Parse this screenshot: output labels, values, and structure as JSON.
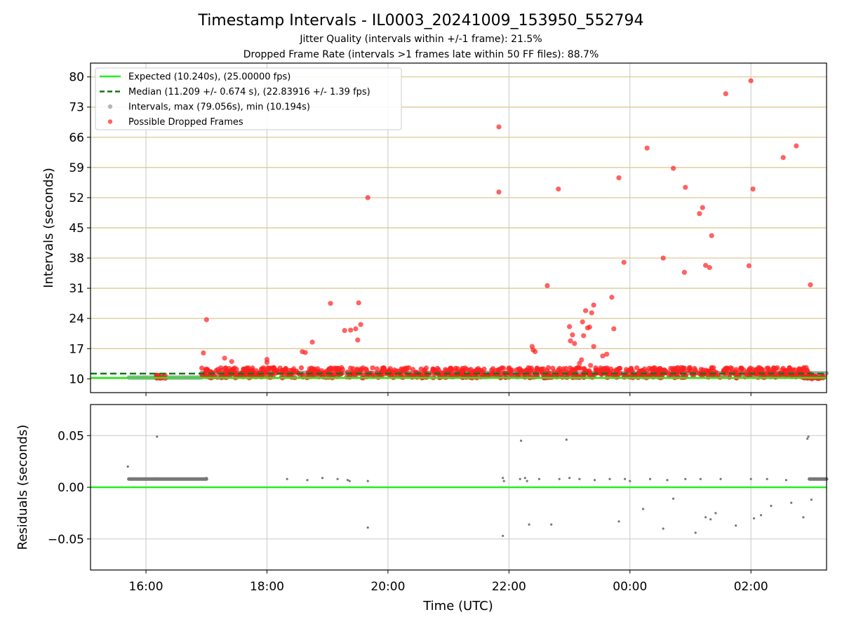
{
  "title": "Timestamp Intervals - IL0003_20241009_153950_552794",
  "subtitle1": "Jitter Quality (intervals within +/-1 frame): 21.5%",
  "subtitle2": "Dropped Frame Rate (intervals >1 frames late within 50 FF files): 88.7%",
  "colors": {
    "expected": "#22ee22",
    "median": "#117711",
    "intervals": "#999999",
    "dropped": "#ff2020",
    "hgrid_top": "#d8c48a",
    "grid": "#c8c8c8",
    "residuals": "#777777"
  },
  "chart_data": [
    {
      "type": "scatter",
      "xlabel": "",
      "ylabel": "Intervals (seconds)",
      "xlim": [
        "15:05",
        "03:15"
      ],
      "ylim": [
        6.8,
        83.2
      ],
      "yticks": [
        10,
        17,
        24,
        31,
        38,
        45,
        52,
        59,
        66,
        73,
        80
      ],
      "grid": true,
      "legend_position": "top-left",
      "legend": [
        "Expected (10.240s), (25.00000 fps)",
        "Median (11.209 +/- 0.674 s), (22.83916 +/- 1.39 fps)",
        "Intervals, max (79.056s), min (10.194s)",
        "Possible Dropped Frames"
      ],
      "expected_interval": 10.24,
      "median_interval": 11.209,
      "bands": [
        {
          "name": "Intervals",
          "x_start": "15:43",
          "x_end": "16:55",
          "y": 10.3
        },
        {
          "name": "Intervals",
          "x_start": "16:55",
          "x_end": "23:00",
          "y": 11.4
        },
        {
          "name": "Intervals",
          "x_start": "23:00",
          "x_end": "03:15",
          "y": 11.3
        }
      ],
      "dropped_frames": [
        {
          "x": "16:57",
          "y": 16.0
        },
        {
          "x": "17:00",
          "y": 23.7
        },
        {
          "x": "17:18",
          "y": 14.8
        },
        {
          "x": "17:25",
          "y": 14.0
        },
        {
          "x": "18:00",
          "y": 13.8
        },
        {
          "x": "18:00",
          "y": 14.5
        },
        {
          "x": "18:35",
          "y": 16.3
        },
        {
          "x": "18:38",
          "y": 16.1
        },
        {
          "x": "18:45",
          "y": 18.5
        },
        {
          "x": "19:03",
          "y": 27.5
        },
        {
          "x": "19:17",
          "y": 21.2
        },
        {
          "x": "19:23",
          "y": 21.3
        },
        {
          "x": "19:28",
          "y": 21.6
        },
        {
          "x": "19:30",
          "y": 19.0
        },
        {
          "x": "19:31",
          "y": 27.6
        },
        {
          "x": "19:33",
          "y": 22.6
        },
        {
          "x": "19:40",
          "y": 52.0
        },
        {
          "x": "21:50",
          "y": 53.3
        },
        {
          "x": "22:23",
          "y": 17.5
        },
        {
          "x": "22:24",
          "y": 16.7
        },
        {
          "x": "22:26",
          "y": 16.3
        },
        {
          "x": "21:50",
          "y": 68.4
        },
        {
          "x": "22:38",
          "y": 31.6
        },
        {
          "x": "22:49",
          "y": 54.0
        },
        {
          "x": "23:00",
          "y": 22.1
        },
        {
          "x": "23:01",
          "y": 18.8
        },
        {
          "x": "23:03",
          "y": 20.2
        },
        {
          "x": "23:05",
          "y": 18.2
        },
        {
          "x": "23:10",
          "y": 13.6
        },
        {
          "x": "23:12",
          "y": 14.4
        },
        {
          "x": "23:13",
          "y": 23.2
        },
        {
          "x": "23:14",
          "y": 20.0
        },
        {
          "x": "23:16",
          "y": 25.8
        },
        {
          "x": "23:18",
          "y": 21.8
        },
        {
          "x": "23:20",
          "y": 22.0
        },
        {
          "x": "23:21",
          "y": 13.1
        },
        {
          "x": "23:22",
          "y": 25.3
        },
        {
          "x": "23:24",
          "y": 17.5
        },
        {
          "x": "23:24",
          "y": 27.1
        },
        {
          "x": "23:33",
          "y": 15.3
        },
        {
          "x": "23:37",
          "y": 15.7
        },
        {
          "x": "23:42",
          "y": 28.9
        },
        {
          "x": "23:44",
          "y": 21.6
        },
        {
          "x": "23:49",
          "y": 56.6
        },
        {
          "x": "23:54",
          "y": 37.0
        },
        {
          "x": "00:17",
          "y": 63.5
        },
        {
          "x": "00:33",
          "y": 38.0
        },
        {
          "x": "00:43",
          "y": 58.8
        },
        {
          "x": "00:55",
          "y": 54.4
        },
        {
          "x": "00:54",
          "y": 34.7
        },
        {
          "x": "01:09",
          "y": 48.3
        },
        {
          "x": "01:12",
          "y": 49.7
        },
        {
          "x": "01:15",
          "y": 36.3
        },
        {
          "x": "01:19",
          "y": 35.8
        },
        {
          "x": "01:21",
          "y": 43.2
        },
        {
          "x": "01:35",
          "y": 76.1
        },
        {
          "x": "01:58",
          "y": 36.2
        },
        {
          "x": "02:00",
          "y": 79.1
        },
        {
          "x": "02:02",
          "y": 54.0
        },
        {
          "x": "02:32",
          "y": 61.3
        },
        {
          "x": "02:45",
          "y": 64.0
        },
        {
          "x": "02:59",
          "y": 31.8
        }
      ]
    },
    {
      "type": "scatter",
      "xlabel": "Time (UTC)",
      "ylabel": "Residuals (seconds)",
      "xlim": [
        "15:05",
        "03:15"
      ],
      "ylim": [
        -0.08,
        0.08
      ],
      "yticks": [
        0.05,
        0.0,
        -0.05
      ],
      "ytick_labels": [
        "0.05",
        "0.00",
        "−0.05"
      ],
      "xticks": [
        "16:00",
        "18:00",
        "20:00",
        "22:00",
        "00:00",
        "02:00"
      ],
      "grid": true,
      "zero_line": 0.0,
      "residual_bands": [
        {
          "x_start": "15:43",
          "x_end": "16:10",
          "y": 0.008
        },
        {
          "x_start": "16:10",
          "x_end": "17:00",
          "y": 0.008
        },
        {
          "x_start": "02:58",
          "x_end": "03:15",
          "y": 0.008
        }
      ],
      "residuals": [
        {
          "x": "15:42",
          "y": 0.02
        },
        {
          "x": "16:11",
          "y": 0.049
        },
        {
          "x": "17:00",
          "y": 0.009
        },
        {
          "x": "18:20",
          "y": 0.008
        },
        {
          "x": "18:40",
          "y": 0.007
        },
        {
          "x": "18:55",
          "y": 0.009
        },
        {
          "x": "19:10",
          "y": 0.008
        },
        {
          "x": "19:20",
          "y": 0.007
        },
        {
          "x": "19:22",
          "y": 0.006
        },
        {
          "x": "19:40",
          "y": 0.006
        },
        {
          "x": "19:40",
          "y": -0.039
        },
        {
          "x": "21:54",
          "y": 0.009
        },
        {
          "x": "21:55",
          "y": 0.006
        },
        {
          "x": "21:54",
          "y": -0.047
        },
        {
          "x": "22:11",
          "y": 0.008
        },
        {
          "x": "22:12",
          "y": 0.045
        },
        {
          "x": "22:16",
          "y": 0.009
        },
        {
          "x": "22:18",
          "y": 0.006
        },
        {
          "x": "22:20",
          "y": -0.036
        },
        {
          "x": "22:30",
          "y": 0.008
        },
        {
          "x": "22:42",
          "y": -0.036
        },
        {
          "x": "22:50",
          "y": 0.008
        },
        {
          "x": "22:57",
          "y": 0.046
        },
        {
          "x": "23:00",
          "y": 0.009
        },
        {
          "x": "23:10",
          "y": 0.008
        },
        {
          "x": "23:25",
          "y": 0.007
        },
        {
          "x": "23:40",
          "y": 0.008
        },
        {
          "x": "23:49",
          "y": -0.033
        },
        {
          "x": "23:55",
          "y": 0.008
        },
        {
          "x": "00:00",
          "y": 0.006
        },
        {
          "x": "00:13",
          "y": -0.021
        },
        {
          "x": "00:20",
          "y": 0.008
        },
        {
          "x": "00:33",
          "y": -0.04
        },
        {
          "x": "00:37",
          "y": 0.007
        },
        {
          "x": "00:43",
          "y": -0.011
        },
        {
          "x": "00:55",
          "y": 0.008
        },
        {
          "x": "01:05",
          "y": -0.044
        },
        {
          "x": "01:10",
          "y": 0.008
        },
        {
          "x": "01:15",
          "y": -0.029
        },
        {
          "x": "01:20",
          "y": -0.031
        },
        {
          "x": "01:25",
          "y": -0.025
        },
        {
          "x": "01:30",
          "y": 0.008
        },
        {
          "x": "01:45",
          "y": -0.037
        },
        {
          "x": "02:00",
          "y": 0.008
        },
        {
          "x": "02:03",
          "y": -0.03
        },
        {
          "x": "02:10",
          "y": -0.027
        },
        {
          "x": "02:16",
          "y": 0.008
        },
        {
          "x": "02:20",
          "y": -0.018
        },
        {
          "x": "02:35",
          "y": 0.007
        },
        {
          "x": "02:40",
          "y": -0.015
        },
        {
          "x": "02:52",
          "y": -0.029
        },
        {
          "x": "02:56",
          "y": 0.047
        },
        {
          "x": "02:57",
          "y": 0.049
        },
        {
          "x": "03:00",
          "y": -0.012
        }
      ]
    }
  ]
}
